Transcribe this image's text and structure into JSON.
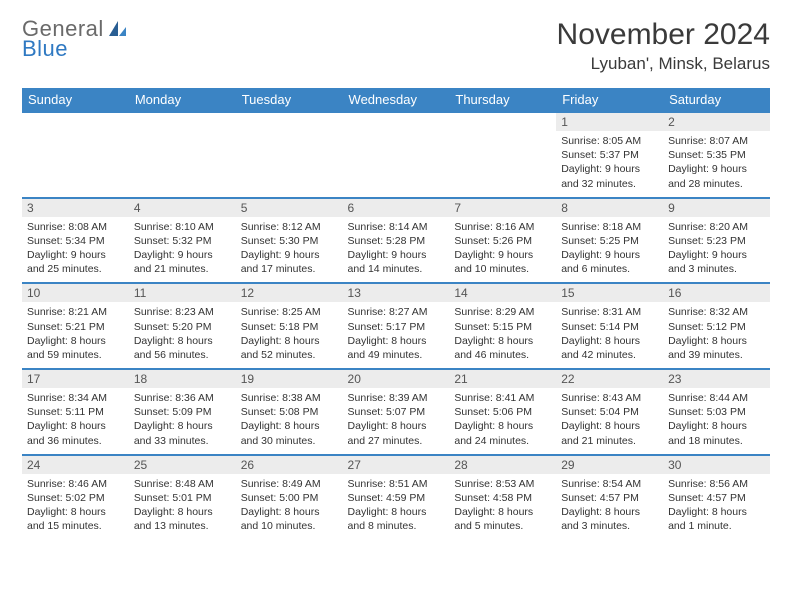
{
  "brand": {
    "word1": "General",
    "word2": "Blue",
    "color_gray": "#6a6a6a",
    "color_blue": "#2f79c2"
  },
  "header": {
    "title": "November 2024",
    "location": "Lyuban', Minsk, Belarus"
  },
  "theme": {
    "header_bg": "#3b84c4",
    "header_fg": "#ffffff",
    "daynum_bg": "#ececec",
    "row_border": "#3b84c4",
    "page_bg": "#ffffff",
    "text": "#333333"
  },
  "dow": [
    "Sunday",
    "Monday",
    "Tuesday",
    "Wednesday",
    "Thursday",
    "Friday",
    "Saturday"
  ],
  "weeks": [
    [
      {
        "n": "",
        "sr": "",
        "ss": "",
        "dl": ""
      },
      {
        "n": "",
        "sr": "",
        "ss": "",
        "dl": ""
      },
      {
        "n": "",
        "sr": "",
        "ss": "",
        "dl": ""
      },
      {
        "n": "",
        "sr": "",
        "ss": "",
        "dl": ""
      },
      {
        "n": "",
        "sr": "",
        "ss": "",
        "dl": ""
      },
      {
        "n": "1",
        "sr": "Sunrise: 8:05 AM",
        "ss": "Sunset: 5:37 PM",
        "dl": "Daylight: 9 hours and 32 minutes."
      },
      {
        "n": "2",
        "sr": "Sunrise: 8:07 AM",
        "ss": "Sunset: 5:35 PM",
        "dl": "Daylight: 9 hours and 28 minutes."
      }
    ],
    [
      {
        "n": "3",
        "sr": "Sunrise: 8:08 AM",
        "ss": "Sunset: 5:34 PM",
        "dl": "Daylight: 9 hours and 25 minutes."
      },
      {
        "n": "4",
        "sr": "Sunrise: 8:10 AM",
        "ss": "Sunset: 5:32 PM",
        "dl": "Daylight: 9 hours and 21 minutes."
      },
      {
        "n": "5",
        "sr": "Sunrise: 8:12 AM",
        "ss": "Sunset: 5:30 PM",
        "dl": "Daylight: 9 hours and 17 minutes."
      },
      {
        "n": "6",
        "sr": "Sunrise: 8:14 AM",
        "ss": "Sunset: 5:28 PM",
        "dl": "Daylight: 9 hours and 14 minutes."
      },
      {
        "n": "7",
        "sr": "Sunrise: 8:16 AM",
        "ss": "Sunset: 5:26 PM",
        "dl": "Daylight: 9 hours and 10 minutes."
      },
      {
        "n": "8",
        "sr": "Sunrise: 8:18 AM",
        "ss": "Sunset: 5:25 PM",
        "dl": "Daylight: 9 hours and 6 minutes."
      },
      {
        "n": "9",
        "sr": "Sunrise: 8:20 AM",
        "ss": "Sunset: 5:23 PM",
        "dl": "Daylight: 9 hours and 3 minutes."
      }
    ],
    [
      {
        "n": "10",
        "sr": "Sunrise: 8:21 AM",
        "ss": "Sunset: 5:21 PM",
        "dl": "Daylight: 8 hours and 59 minutes."
      },
      {
        "n": "11",
        "sr": "Sunrise: 8:23 AM",
        "ss": "Sunset: 5:20 PM",
        "dl": "Daylight: 8 hours and 56 minutes."
      },
      {
        "n": "12",
        "sr": "Sunrise: 8:25 AM",
        "ss": "Sunset: 5:18 PM",
        "dl": "Daylight: 8 hours and 52 minutes."
      },
      {
        "n": "13",
        "sr": "Sunrise: 8:27 AM",
        "ss": "Sunset: 5:17 PM",
        "dl": "Daylight: 8 hours and 49 minutes."
      },
      {
        "n": "14",
        "sr": "Sunrise: 8:29 AM",
        "ss": "Sunset: 5:15 PM",
        "dl": "Daylight: 8 hours and 46 minutes."
      },
      {
        "n": "15",
        "sr": "Sunrise: 8:31 AM",
        "ss": "Sunset: 5:14 PM",
        "dl": "Daylight: 8 hours and 42 minutes."
      },
      {
        "n": "16",
        "sr": "Sunrise: 8:32 AM",
        "ss": "Sunset: 5:12 PM",
        "dl": "Daylight: 8 hours and 39 minutes."
      }
    ],
    [
      {
        "n": "17",
        "sr": "Sunrise: 8:34 AM",
        "ss": "Sunset: 5:11 PM",
        "dl": "Daylight: 8 hours and 36 minutes."
      },
      {
        "n": "18",
        "sr": "Sunrise: 8:36 AM",
        "ss": "Sunset: 5:09 PM",
        "dl": "Daylight: 8 hours and 33 minutes."
      },
      {
        "n": "19",
        "sr": "Sunrise: 8:38 AM",
        "ss": "Sunset: 5:08 PM",
        "dl": "Daylight: 8 hours and 30 minutes."
      },
      {
        "n": "20",
        "sr": "Sunrise: 8:39 AM",
        "ss": "Sunset: 5:07 PM",
        "dl": "Daylight: 8 hours and 27 minutes."
      },
      {
        "n": "21",
        "sr": "Sunrise: 8:41 AM",
        "ss": "Sunset: 5:06 PM",
        "dl": "Daylight: 8 hours and 24 minutes."
      },
      {
        "n": "22",
        "sr": "Sunrise: 8:43 AM",
        "ss": "Sunset: 5:04 PM",
        "dl": "Daylight: 8 hours and 21 minutes."
      },
      {
        "n": "23",
        "sr": "Sunrise: 8:44 AM",
        "ss": "Sunset: 5:03 PM",
        "dl": "Daylight: 8 hours and 18 minutes."
      }
    ],
    [
      {
        "n": "24",
        "sr": "Sunrise: 8:46 AM",
        "ss": "Sunset: 5:02 PM",
        "dl": "Daylight: 8 hours and 15 minutes."
      },
      {
        "n": "25",
        "sr": "Sunrise: 8:48 AM",
        "ss": "Sunset: 5:01 PM",
        "dl": "Daylight: 8 hours and 13 minutes."
      },
      {
        "n": "26",
        "sr": "Sunrise: 8:49 AM",
        "ss": "Sunset: 5:00 PM",
        "dl": "Daylight: 8 hours and 10 minutes."
      },
      {
        "n": "27",
        "sr": "Sunrise: 8:51 AM",
        "ss": "Sunset: 4:59 PM",
        "dl": "Daylight: 8 hours and 8 minutes."
      },
      {
        "n": "28",
        "sr": "Sunrise: 8:53 AM",
        "ss": "Sunset: 4:58 PM",
        "dl": "Daylight: 8 hours and 5 minutes."
      },
      {
        "n": "29",
        "sr": "Sunrise: 8:54 AM",
        "ss": "Sunset: 4:57 PM",
        "dl": "Daylight: 8 hours and 3 minutes."
      },
      {
        "n": "30",
        "sr": "Sunrise: 8:56 AM",
        "ss": "Sunset: 4:57 PM",
        "dl": "Daylight: 8 hours and 1 minute."
      }
    ]
  ]
}
